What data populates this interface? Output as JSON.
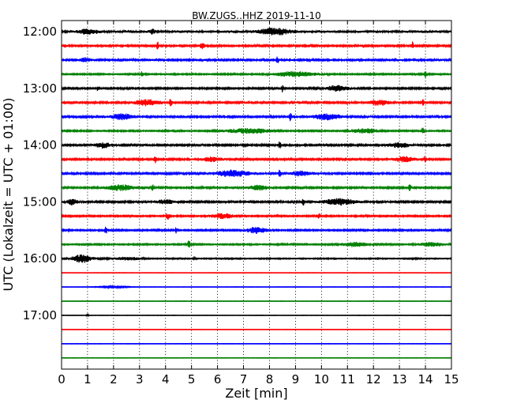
{
  "chart_data": {
    "type": "line",
    "title": "BW.ZUGS..HHZ 2019-11-10",
    "xlabel": "Zeit  [min]",
    "ylabel": "UTC (Lokalzeit = UTC + 01:00)",
    "xlim": [
      0,
      15
    ],
    "xticks": [
      "0",
      "1",
      "2",
      "3",
      "4",
      "5",
      "6",
      "7",
      "8",
      "9",
      "10",
      "11",
      "12",
      "13",
      "14",
      "15"
    ],
    "yticks": [
      "12:00",
      "13:00",
      "14:00",
      "15:00",
      "16:00",
      "17:00"
    ],
    "grid": {
      "x": true,
      "y": false,
      "style": "dotted"
    },
    "trace_colors": [
      "#000000",
      "#ff0000",
      "#0000ff",
      "#008000"
    ],
    "traces": [
      {
        "start": "12:00",
        "amplitude": 0.18,
        "events": [
          [
            8.2,
            0.6,
            0.45
          ],
          [
            3.5,
            0.1,
            0.35
          ],
          [
            1.0,
            0.4,
            0.25
          ]
        ]
      },
      {
        "start": "12:15",
        "amplitude": 0.13,
        "events": [
          [
            3.7,
            0.05,
            0.55
          ],
          [
            13.5,
            0.05,
            0.5
          ],
          [
            5.4,
            0.1,
            0.35
          ]
        ]
      },
      {
        "start": "12:30",
        "amplitude": 0.15,
        "events": [
          [
            8.3,
            0.05,
            0.5
          ],
          [
            0.9,
            0.2,
            0.3
          ]
        ]
      },
      {
        "start": "12:45",
        "amplitude": 0.1,
        "events": [
          [
            9.0,
            0.8,
            0.35
          ],
          [
            14.0,
            0.05,
            0.45
          ],
          [
            3.1,
            0.05,
            0.35
          ]
        ]
      },
      {
        "start": "13:00",
        "amplitude": 0.12,
        "events": [
          [
            8.5,
            0.05,
            0.55
          ],
          [
            10.6,
            0.4,
            0.4
          ],
          [
            1.4,
            0.05,
            0.35
          ]
        ]
      },
      {
        "start": "13:15",
        "amplitude": 0.13,
        "events": [
          [
            3.3,
            0.5,
            0.4
          ],
          [
            4.2,
            0.05,
            0.55
          ],
          [
            12.2,
            0.4,
            0.35
          ],
          [
            13.9,
            0.05,
            0.4
          ]
        ]
      },
      {
        "start": "13:30",
        "amplitude": 0.14,
        "events": [
          [
            2.3,
            0.4,
            0.4
          ],
          [
            8.8,
            0.05,
            0.55
          ],
          [
            10.2,
            0.5,
            0.4
          ]
        ]
      },
      {
        "start": "13:45",
        "amplitude": 0.1,
        "events": [
          [
            13.9,
            0.05,
            0.55
          ],
          [
            7.2,
            0.8,
            0.35
          ],
          [
            11.7,
            0.5,
            0.3
          ]
        ]
      },
      {
        "start": "14:00",
        "amplitude": 0.14,
        "events": [
          [
            8.4,
            0.05,
            0.5
          ],
          [
            1.6,
            0.3,
            0.35
          ],
          [
            13.0,
            0.4,
            0.3
          ]
        ]
      },
      {
        "start": "14:15",
        "amplitude": 0.13,
        "events": [
          [
            3.6,
            0.05,
            0.55
          ],
          [
            14.0,
            0.05,
            0.5
          ],
          [
            5.8,
            0.4,
            0.3
          ],
          [
            13.2,
            0.4,
            0.35
          ]
        ]
      },
      {
        "start": "14:30",
        "amplitude": 0.14,
        "events": [
          [
            6.6,
            0.6,
            0.45
          ],
          [
            8.4,
            0.05,
            0.55
          ],
          [
            9.2,
            0.4,
            0.3
          ]
        ]
      },
      {
        "start": "14:45",
        "amplitude": 0.12,
        "events": [
          [
            2.3,
            0.5,
            0.4
          ],
          [
            3.5,
            0.05,
            0.5
          ],
          [
            13.4,
            0.05,
            0.45
          ],
          [
            7.6,
            0.4,
            0.3
          ]
        ]
      },
      {
        "start": "15:00",
        "amplitude": 0.14,
        "events": [
          [
            0.4,
            0.2,
            0.4
          ],
          [
            10.7,
            0.6,
            0.4
          ],
          [
            9.3,
            0.05,
            0.5
          ],
          [
            4.0,
            0.3,
            0.3
          ]
        ]
      },
      {
        "start": "15:15",
        "amplitude": 0.11,
        "events": [
          [
            6.2,
            0.4,
            0.35
          ],
          [
            4.1,
            0.1,
            0.4
          ],
          [
            9.9,
            0.05,
            0.4
          ]
        ]
      },
      {
        "start": "15:30",
        "amplitude": 0.11,
        "events": [
          [
            1.7,
            0.05,
            0.55
          ],
          [
            7.5,
            0.4,
            0.4
          ],
          [
            4.4,
            0.05,
            0.35
          ]
        ]
      },
      {
        "start": "15:45",
        "amplitude": 0.1,
        "events": [
          [
            4.9,
            0.05,
            0.55
          ],
          [
            11.3,
            0.5,
            0.3
          ],
          [
            14.2,
            0.5,
            0.25
          ]
        ]
      },
      {
        "start": "16:00",
        "amplitude": 0.08,
        "events": [
          [
            0.8,
            0.4,
            0.55
          ],
          [
            2.5,
            0.6,
            0.2
          ],
          [
            5.1,
            0.05,
            0.3
          ]
        ]
      },
      {
        "start": "16:15",
        "amplitude": 0.03,
        "events": []
      },
      {
        "start": "16:30",
        "amplitude": 0.03,
        "events": [
          [
            2.0,
            0.6,
            0.1
          ]
        ]
      },
      {
        "start": "16:45",
        "amplitude": 0.03,
        "events": []
      },
      {
        "start": "17:00",
        "amplitude": 0.03,
        "events": [
          [
            1.0,
            0.05,
            0.12
          ]
        ]
      },
      {
        "start": "17:15",
        "amplitude": 0.02,
        "events": []
      },
      {
        "start": "17:30",
        "amplitude": 0.03,
        "events": []
      },
      {
        "start": "17:45",
        "amplitude": 0.03,
        "events": []
      }
    ]
  }
}
